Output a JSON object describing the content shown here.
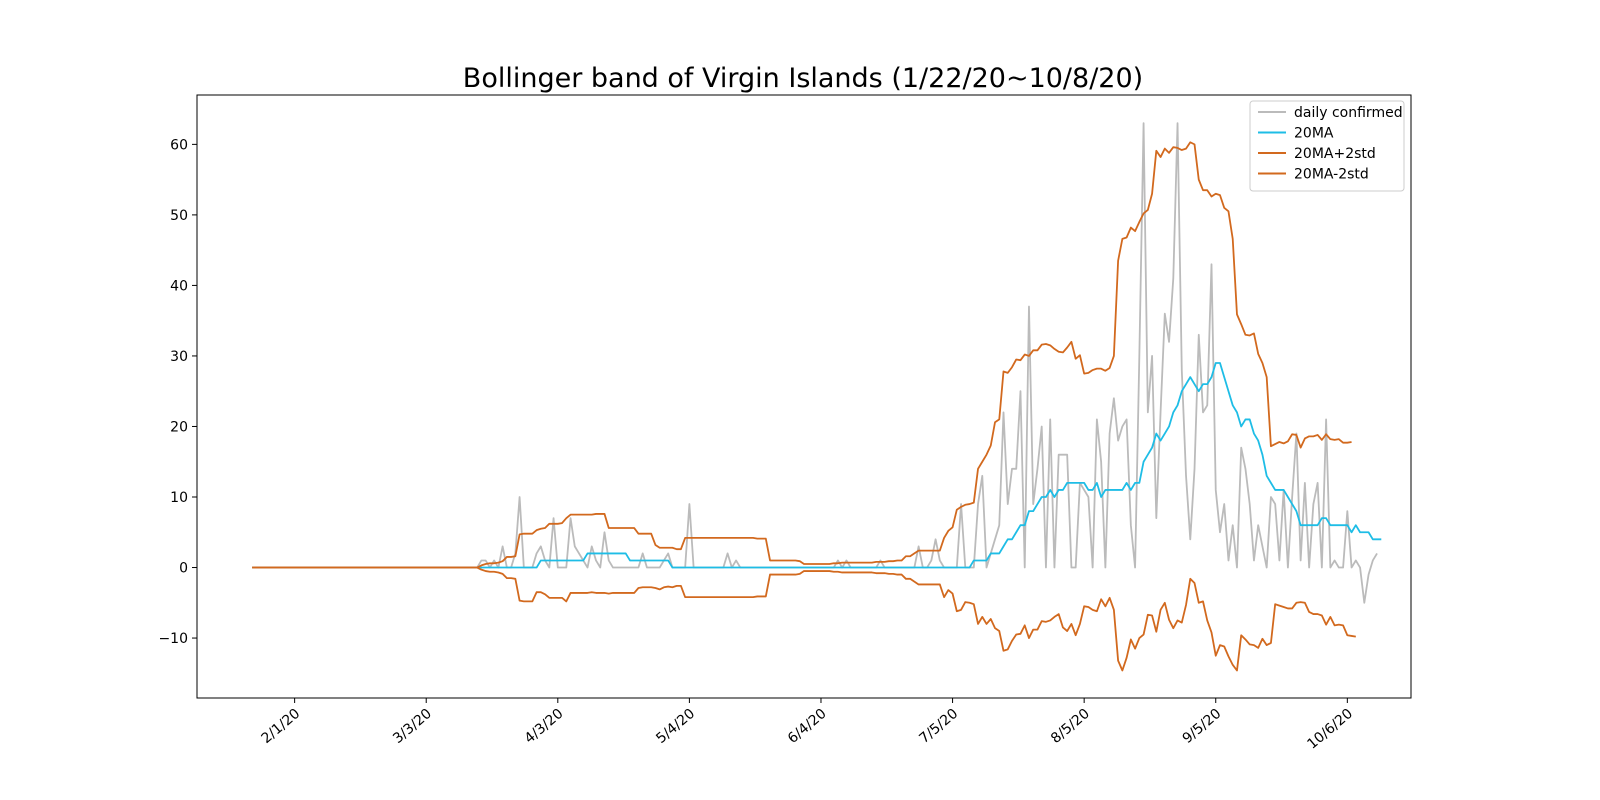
{
  "chart_data": {
    "type": "line",
    "title": "Bollinger band of Virgin Islands (1/22/20~10/8/20)",
    "xlabel": "",
    "ylabel": "",
    "x_tick_labels": [
      "2/1/20",
      "3/3/20",
      "4/3/20",
      "5/4/20",
      "6/4/20",
      "7/5/20",
      "8/5/20",
      "9/5/20",
      "10/6/20"
    ],
    "y_ticks": [
      -10,
      0,
      10,
      20,
      30,
      40,
      50,
      60
    ],
    "ylim": [
      -18.5,
      67
    ],
    "xlim": [
      "1/9/20",
      "10/21/20"
    ],
    "grid": false,
    "legend_position": "upper right",
    "start_date": "1/22/20",
    "series": [
      {
        "name": "daily confirmed",
        "color": "#bbbbbb",
        "values": [
          0,
          0,
          0,
          0,
          0,
          0,
          0,
          0,
          0,
          0,
          0,
          0,
          0,
          0,
          0,
          0,
          0,
          0,
          0,
          0,
          0,
          0,
          0,
          0,
          0,
          0,
          0,
          0,
          0,
          0,
          0,
          0,
          0,
          0,
          0,
          0,
          0,
          0,
          0,
          0,
          0,
          0,
          0,
          0,
          0,
          0,
          0,
          0,
          0,
          0,
          0,
          0,
          0,
          0,
          1,
          1,
          0,
          1,
          0,
          3,
          0,
          0,
          2,
          10,
          0,
          0,
          0,
          2,
          3,
          1,
          0,
          7,
          0,
          0,
          0,
          7,
          3,
          2,
          1,
          0,
          3,
          1,
          0,
          5,
          1,
          0,
          0,
          0,
          0,
          0,
          0,
          0,
          2,
          0,
          0,
          0,
          0,
          1,
          2,
          0,
          0,
          0,
          0,
          9,
          0,
          0,
          0,
          0,
          0,
          0,
          0,
          0,
          2,
          0,
          1,
          0,
          0,
          0,
          0,
          0,
          0,
          0,
          0,
          0,
          0,
          0,
          0,
          0,
          0,
          0,
          0,
          0,
          0,
          0,
          0,
          0,
          0,
          0,
          1,
          0,
          1,
          0,
          0,
          0,
          0,
          0,
          0,
          0,
          1,
          0,
          0,
          0,
          0,
          0,
          0,
          0,
          0,
          3,
          0,
          0,
          1,
          4,
          1,
          0,
          0,
          0,
          0,
          9,
          0,
          0,
          0,
          9,
          13,
          0,
          2,
          4,
          6,
          22,
          9,
          14,
          14,
          25,
          0,
          37,
          9,
          14,
          20,
          0,
          21,
          0,
          16,
          16,
          16,
          0,
          0,
          12,
          11,
          10,
          0,
          21,
          15,
          0,
          19,
          24,
          18,
          20,
          21,
          6,
          0,
          30,
          63,
          22,
          30,
          7,
          22,
          36,
          32,
          41,
          63,
          28,
          13,
          4,
          14,
          33,
          22,
          23,
          43,
          11,
          5,
          9,
          1,
          6,
          0,
          17,
          14,
          9,
          1,
          6,
          3,
          0,
          10,
          9,
          1,
          11,
          0,
          10,
          19,
          1,
          12,
          0,
          9,
          12,
          0,
          21,
          0,
          1,
          0,
          0,
          8,
          0,
          1,
          0,
          -5,
          -1,
          1,
          2
        ]
      },
      {
        "name": "20MA",
        "color": "#1ebde6",
        "values": [
          0,
          0,
          0,
          0,
          0,
          0,
          0,
          0,
          0,
          0,
          0,
          0,
          0,
          0,
          0,
          0,
          0,
          0,
          0,
          0,
          0,
          0,
          0,
          0,
          0,
          0,
          0,
          0,
          0,
          0,
          0,
          0,
          0,
          0,
          0,
          0,
          0,
          0,
          0,
          0,
          0,
          0,
          0,
          0,
          0,
          0,
          0,
          0,
          0,
          0,
          0,
          0,
          0,
          0,
          0,
          0,
          0,
          0,
          0,
          0,
          0,
          0,
          0,
          0,
          0,
          0,
          0,
          0,
          1,
          1,
          1,
          1,
          1,
          1,
          1,
          1,
          1,
          1,
          1,
          2,
          2,
          2,
          2,
          2,
          2,
          2,
          2,
          2,
          2,
          1,
          1,
          1,
          1,
          1,
          1,
          1,
          1,
          1,
          1,
          0,
          0,
          0,
          0,
          0,
          0,
          0,
          0,
          0,
          0,
          0,
          0,
          0,
          0,
          0,
          0,
          0,
          0,
          0,
          0,
          0,
          0,
          0,
          0,
          0,
          0,
          0,
          0,
          0,
          0,
          0,
          0,
          0,
          0,
          0,
          0,
          0,
          0,
          0,
          0,
          0,
          0,
          0,
          0,
          0,
          0,
          0,
          0,
          0,
          0,
          0,
          0,
          0,
          0,
          0,
          0,
          0,
          0,
          0,
          0,
          0,
          0,
          0,
          0,
          0,
          0,
          0,
          0,
          0,
          0,
          0,
          1,
          1,
          1,
          1,
          2,
          2,
          2,
          3,
          4,
          4,
          5,
          6,
          6,
          8,
          8,
          9,
          10,
          10,
          11,
          10,
          11,
          11,
          12,
          12,
          12,
          12,
          12,
          11,
          11,
          12,
          10,
          11,
          11,
          11,
          11,
          11,
          12,
          11,
          12,
          12,
          15,
          16,
          17,
          19,
          18,
          19,
          20,
          22,
          23,
          25,
          26,
          27,
          26,
          25,
          26,
          26,
          27,
          29,
          29,
          27,
          25,
          23,
          22,
          20,
          21,
          21,
          19,
          18,
          16,
          13,
          12,
          11,
          11,
          11,
          10,
          9,
          8,
          6,
          6,
          6,
          6,
          6,
          7,
          7,
          6,
          6,
          6,
          6,
          6,
          5,
          6,
          5,
          5,
          5,
          4,
          4,
          4
        ]
      },
      {
        "name": "20MA+2std",
        "color": "#d2691e",
        "values": [
          0,
          0,
          0,
          0,
          0,
          0,
          0,
          0,
          0,
          0,
          0,
          0,
          0,
          0,
          0,
          0,
          0,
          0,
          0,
          0,
          0,
          0,
          0,
          0,
          0,
          0,
          0,
          0,
          0,
          0,
          0,
          0,
          0,
          0,
          0,
          0,
          0,
          0,
          0,
          0,
          0,
          0,
          0,
          0,
          0,
          0,
          0,
          0,
          0,
          0,
          0,
          0,
          0,
          0,
          0.3,
          0.5,
          0.6,
          0.6,
          0.7,
          0.9,
          1.5,
          1.5,
          1.6,
          4.7,
          4.8,
          4.8,
          4.8,
          5.3,
          5.5,
          5.6,
          6.2,
          6.2,
          6.2,
          6.3,
          7.0,
          7.5,
          7.5,
          7.5,
          7.5,
          7.5,
          7.5,
          7.6,
          7.6,
          7.6,
          5.6,
          5.6,
          5.6,
          5.6,
          5.6,
          5.6,
          5.6,
          4.8,
          4.8,
          4.8,
          4.8,
          3.2,
          2.8,
          2.8,
          2.8,
          2.8,
          2.6,
          2.6,
          4.2,
          4.2,
          4.2,
          4.2,
          4.2,
          4.2,
          4.2,
          4.2,
          4.2,
          4.2,
          4.2,
          4.2,
          4.2,
          4.2,
          4.2,
          4.2,
          4.2,
          4.1,
          4.1,
          4.1,
          1.0,
          1.0,
          1.0,
          1.0,
          1.0,
          1.0,
          1.0,
          0.9,
          0.5,
          0.5,
          0.5,
          0.5,
          0.5,
          0.5,
          0.5,
          0.6,
          0.6,
          0.7,
          0.7,
          0.7,
          0.7,
          0.7,
          0.7,
          0.7,
          0.7,
          0.8,
          0.8,
          0.8,
          0.9,
          0.9,
          1.0,
          1.0,
          1.6,
          1.6,
          2.0,
          2.4,
          2.4,
          2.4,
          2.4,
          2.4,
          2.4,
          4.2,
          5.2,
          5.7,
          8.2,
          8.6,
          8.9,
          9.0,
          9.2,
          14.0,
          15.0,
          16.0,
          17.3,
          20.6,
          21.0,
          27.8,
          27.6,
          28.4,
          29.5,
          29.4,
          30.2,
          30.0,
          30.8,
          30.8,
          31.6,
          31.7,
          31.5,
          31.0,
          30.6,
          30.5,
          31.2,
          32.0,
          29.6,
          30.1,
          27.5,
          27.6,
          28.0,
          28.2,
          28.2,
          27.9,
          28.3,
          30.0,
          43.5,
          46.6,
          46.8,
          48.2,
          47.7,
          49.0,
          50.2,
          50.7,
          53.0,
          59.1,
          58.2,
          59.4,
          58.8,
          59.6,
          59.5,
          59.2,
          59.4,
          60.3,
          60.0,
          55.0,
          53.5,
          53.5,
          52.6,
          53.0,
          52.8,
          51.0,
          50.5,
          46.6,
          35.9,
          34.5,
          33.0,
          32.9,
          33.2,
          30.3,
          29.0,
          27.0,
          17.2,
          17.5,
          17.8,
          17.6,
          17.9,
          18.9,
          18.8,
          17.0,
          18.3,
          18.6,
          18.6,
          18.8,
          18.1,
          18.9,
          18.2,
          18.1,
          18.2,
          17.7,
          17.7,
          17.8
        ]
      },
      {
        "name": "20MA-2std",
        "color": "#d2691e",
        "values": [
          0,
          0,
          0,
          0,
          0,
          0,
          0,
          0,
          0,
          0,
          0,
          0,
          0,
          0,
          0,
          0,
          0,
          0,
          0,
          0,
          0,
          0,
          0,
          0,
          0,
          0,
          0,
          0,
          0,
          0,
          0,
          0,
          0,
          0,
          0,
          0,
          0,
          0,
          0,
          0,
          0,
          0,
          0,
          0,
          0,
          0,
          0,
          0,
          0,
          0,
          0,
          0,
          0,
          0,
          -0.3,
          -0.5,
          -0.6,
          -0.6,
          -0.7,
          -0.9,
          -1.5,
          -1.5,
          -1.6,
          -4.7,
          -4.8,
          -4.8,
          -4.8,
          -3.5,
          -3.5,
          -3.8,
          -4.3,
          -4.3,
          -4.3,
          -4.3,
          -4.8,
          -3.6,
          -3.6,
          -3.6,
          -3.6,
          -3.6,
          -3.5,
          -3.6,
          -3.6,
          -3.6,
          -3.7,
          -3.6,
          -3.6,
          -3.6,
          -3.6,
          -3.6,
          -3.6,
          -2.9,
          -2.8,
          -2.8,
          -2.8,
          -2.9,
          -3.1,
          -2.8,
          -2.7,
          -2.8,
          -2.6,
          -2.6,
          -4.2,
          -4.2,
          -4.2,
          -4.2,
          -4.2,
          -4.2,
          -4.2,
          -4.2,
          -4.2,
          -4.2,
          -4.2,
          -4.2,
          -4.2,
          -4.2,
          -4.2,
          -4.2,
          -4.2,
          -4.1,
          -4.1,
          -4.1,
          -1.0,
          -1.0,
          -1.0,
          -1.0,
          -1.0,
          -1.0,
          -1.0,
          -0.9,
          -0.5,
          -0.5,
          -0.5,
          -0.5,
          -0.5,
          -0.5,
          -0.5,
          -0.6,
          -0.6,
          -0.7,
          -0.7,
          -0.7,
          -0.7,
          -0.7,
          -0.7,
          -0.7,
          -0.7,
          -0.8,
          -0.8,
          -0.8,
          -0.9,
          -0.9,
          -1.0,
          -1.0,
          -1.6,
          -1.6,
          -2.0,
          -2.4,
          -2.4,
          -2.4,
          -2.4,
          -2.4,
          -2.4,
          -4.2,
          -3.2,
          -3.7,
          -6.2,
          -6.0,
          -4.9,
          -5.0,
          -5.2,
          -8.0,
          -7.0,
          -8.0,
          -7.3,
          -8.6,
          -9.0,
          -11.8,
          -11.6,
          -10.4,
          -9.5,
          -9.4,
          -8.2,
          -10.0,
          -8.8,
          -8.8,
          -7.6,
          -7.7,
          -7.5,
          -7.0,
          -6.6,
          -8.5,
          -9.0,
          -8.0,
          -9.6,
          -8.0,
          -5.5,
          -5.6,
          -6.0,
          -6.2,
          -4.5,
          -5.5,
          -4.3,
          -6.0,
          -13.2,
          -14.6,
          -12.8,
          -10.2,
          -11.5,
          -10.0,
          -9.5,
          -6.7,
          -6.8,
          -9.1,
          -6.0,
          -5.0,
          -7.4,
          -8.6,
          -7.5,
          -7.8,
          -5.3,
          -1.6,
          -2.2,
          -5.0,
          -4.8,
          -7.5,
          -9.2,
          -12.5,
          -11.0,
          -11.2,
          -12.6,
          -13.8,
          -14.6,
          -9.6,
          -10.2,
          -10.9,
          -11.0,
          -11.4,
          -10.1,
          -11.0,
          -10.7,
          -5.2,
          -5.4,
          -5.6,
          -5.8,
          -5.8,
          -5.0,
          -4.9,
          -5.0,
          -6.3,
          -6.6,
          -6.6,
          -6.8,
          -8.1,
          -7.0,
          -8.2,
          -8.1,
          -8.2,
          -9.6,
          -9.7,
          -9.8
        ]
      }
    ]
  }
}
